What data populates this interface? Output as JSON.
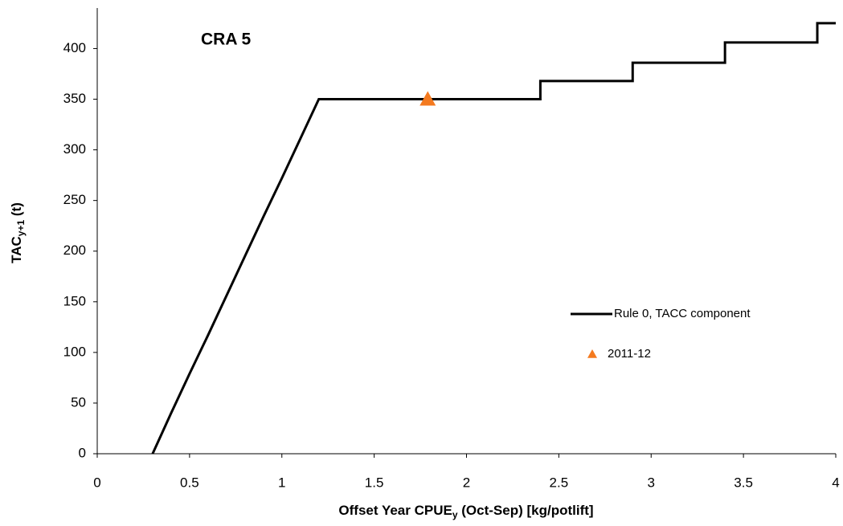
{
  "chart_data": {
    "type": "line",
    "title": "CRA 5",
    "xlabel": [
      "Offset Year CPUE",
      "y",
      " (Oct-Sep) [kg/potlift]"
    ],
    "ylabel": [
      "TAC",
      "y+1",
      " (t)"
    ],
    "xlim": [
      0,
      4
    ],
    "ylim": [
      0,
      440
    ],
    "xticks": [
      0,
      0.5,
      1,
      1.5,
      2,
      2.5,
      3,
      3.5,
      4
    ],
    "yticks": [
      0,
      50,
      100,
      150,
      200,
      250,
      300,
      350,
      400
    ],
    "grid": false,
    "legend": "right",
    "series": [
      {
        "name": "Rule 0, TACC component",
        "type": "line",
        "color": "#000000",
        "x": [
          0.3,
          0.4,
          0.5,
          0.6,
          0.7,
          0.8,
          0.9,
          1.0,
          1.1,
          1.2,
          2.4,
          2.4,
          2.9,
          2.9,
          3.4,
          3.4,
          3.9,
          3.9,
          4.0
        ],
        "values": [
          0,
          40,
          79,
          117,
          156,
          195,
          234,
          272,
          311,
          350,
          350,
          368,
          368,
          386,
          386,
          406,
          406,
          425,
          425
        ]
      },
      {
        "name": "2011-12",
        "type": "scatter",
        "color": "#f47a1f",
        "x": [
          1.79
        ],
        "values": [
          350
        ]
      }
    ]
  }
}
